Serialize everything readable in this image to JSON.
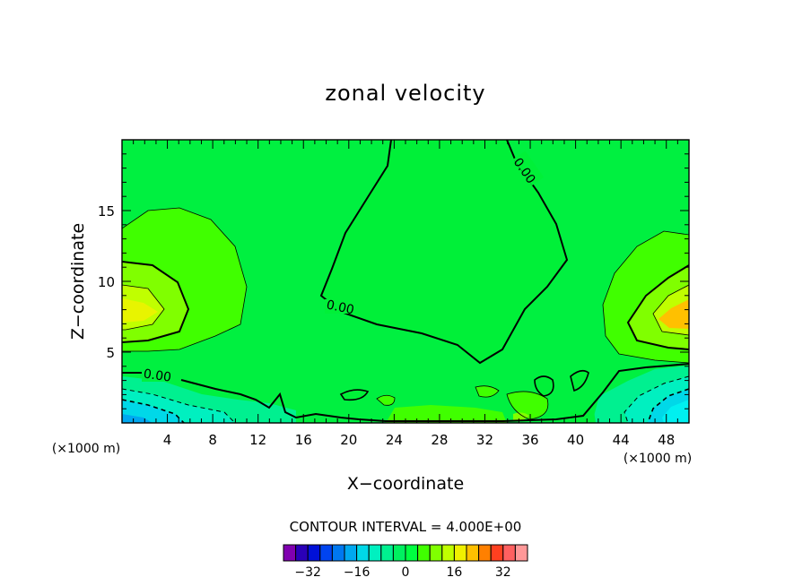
{
  "chart_data": {
    "type": "contour",
    "title": "zonal velocity",
    "xlabel": "X−coordinate",
    "ylabel": "Z−coordinate",
    "x_unit": "(×1000 m)",
    "z_unit": "(×1000 m)",
    "xlim": [
      0,
      50
    ],
    "ylim": [
      0,
      20
    ],
    "x_ticks": [
      4,
      8,
      12,
      16,
      20,
      24,
      28,
      32,
      36,
      40,
      44,
      48
    ],
    "x_tick_labels": [
      "4",
      "8",
      "12",
      "16",
      "20",
      "24",
      "28",
      "32",
      "36",
      "40",
      "44",
      "48"
    ],
    "y_ticks": [
      5,
      10,
      15
    ],
    "y_tick_labels": [
      "5",
      "10",
      "15"
    ],
    "contour_interval_text": "CONTOUR INTERVAL = 4.000E+00",
    "contour_interval": 4.0,
    "contour_line_labels": [
      "0.00",
      "0.00",
      "0.00"
    ],
    "colorbar": {
      "levels": [
        -36,
        -32,
        -28,
        -24,
        -20,
        -16,
        -12,
        -8,
        -4,
        0,
        4,
        8,
        12,
        16,
        20,
        24,
        28,
        32,
        36
      ],
      "colors": [
        "#8000b0",
        "#2a00b8",
        "#0010d8",
        "#0044f0",
        "#0078f0",
        "#00a8f0",
        "#00d8e8",
        "#00f0c0",
        "#00f090",
        "#00f060",
        "#00ff40",
        "#40ff00",
        "#80ff00",
        "#c0ff00",
        "#f0f000",
        "#ffc000",
        "#ff8000",
        "#ff4020",
        "#ff6060",
        "#ff9898"
      ],
      "tick_values": [
        -32,
        -16,
        0,
        16,
        32
      ],
      "tick_labels": [
        "−32",
        "−16",
        "0",
        "16",
        "32"
      ]
    },
    "features": [
      {
        "kind": "negative_region",
        "x_range": [
          18,
          39
        ],
        "z_range": [
          4.5,
          20
        ],
        "sign": "negative",
        "label": "0.00"
      },
      {
        "kind": "positive_maximum",
        "x": 2.5,
        "z": 8,
        "level_range": [
          16,
          20
        ]
      },
      {
        "kind": "positive_maximum",
        "x": 48.5,
        "z": 7.5,
        "level_range": [
          20,
          24
        ]
      },
      {
        "kind": "negative_minimum",
        "x": 2,
        "z": 1,
        "level_range": [
          -16,
          -12
        ]
      },
      {
        "kind": "negative_minimum",
        "x": 48,
        "z": 0.8,
        "level_range": [
          -16,
          -12
        ]
      }
    ],
    "colors": {
      "background_field": "#00f040",
      "line": "#000000"
    }
  }
}
